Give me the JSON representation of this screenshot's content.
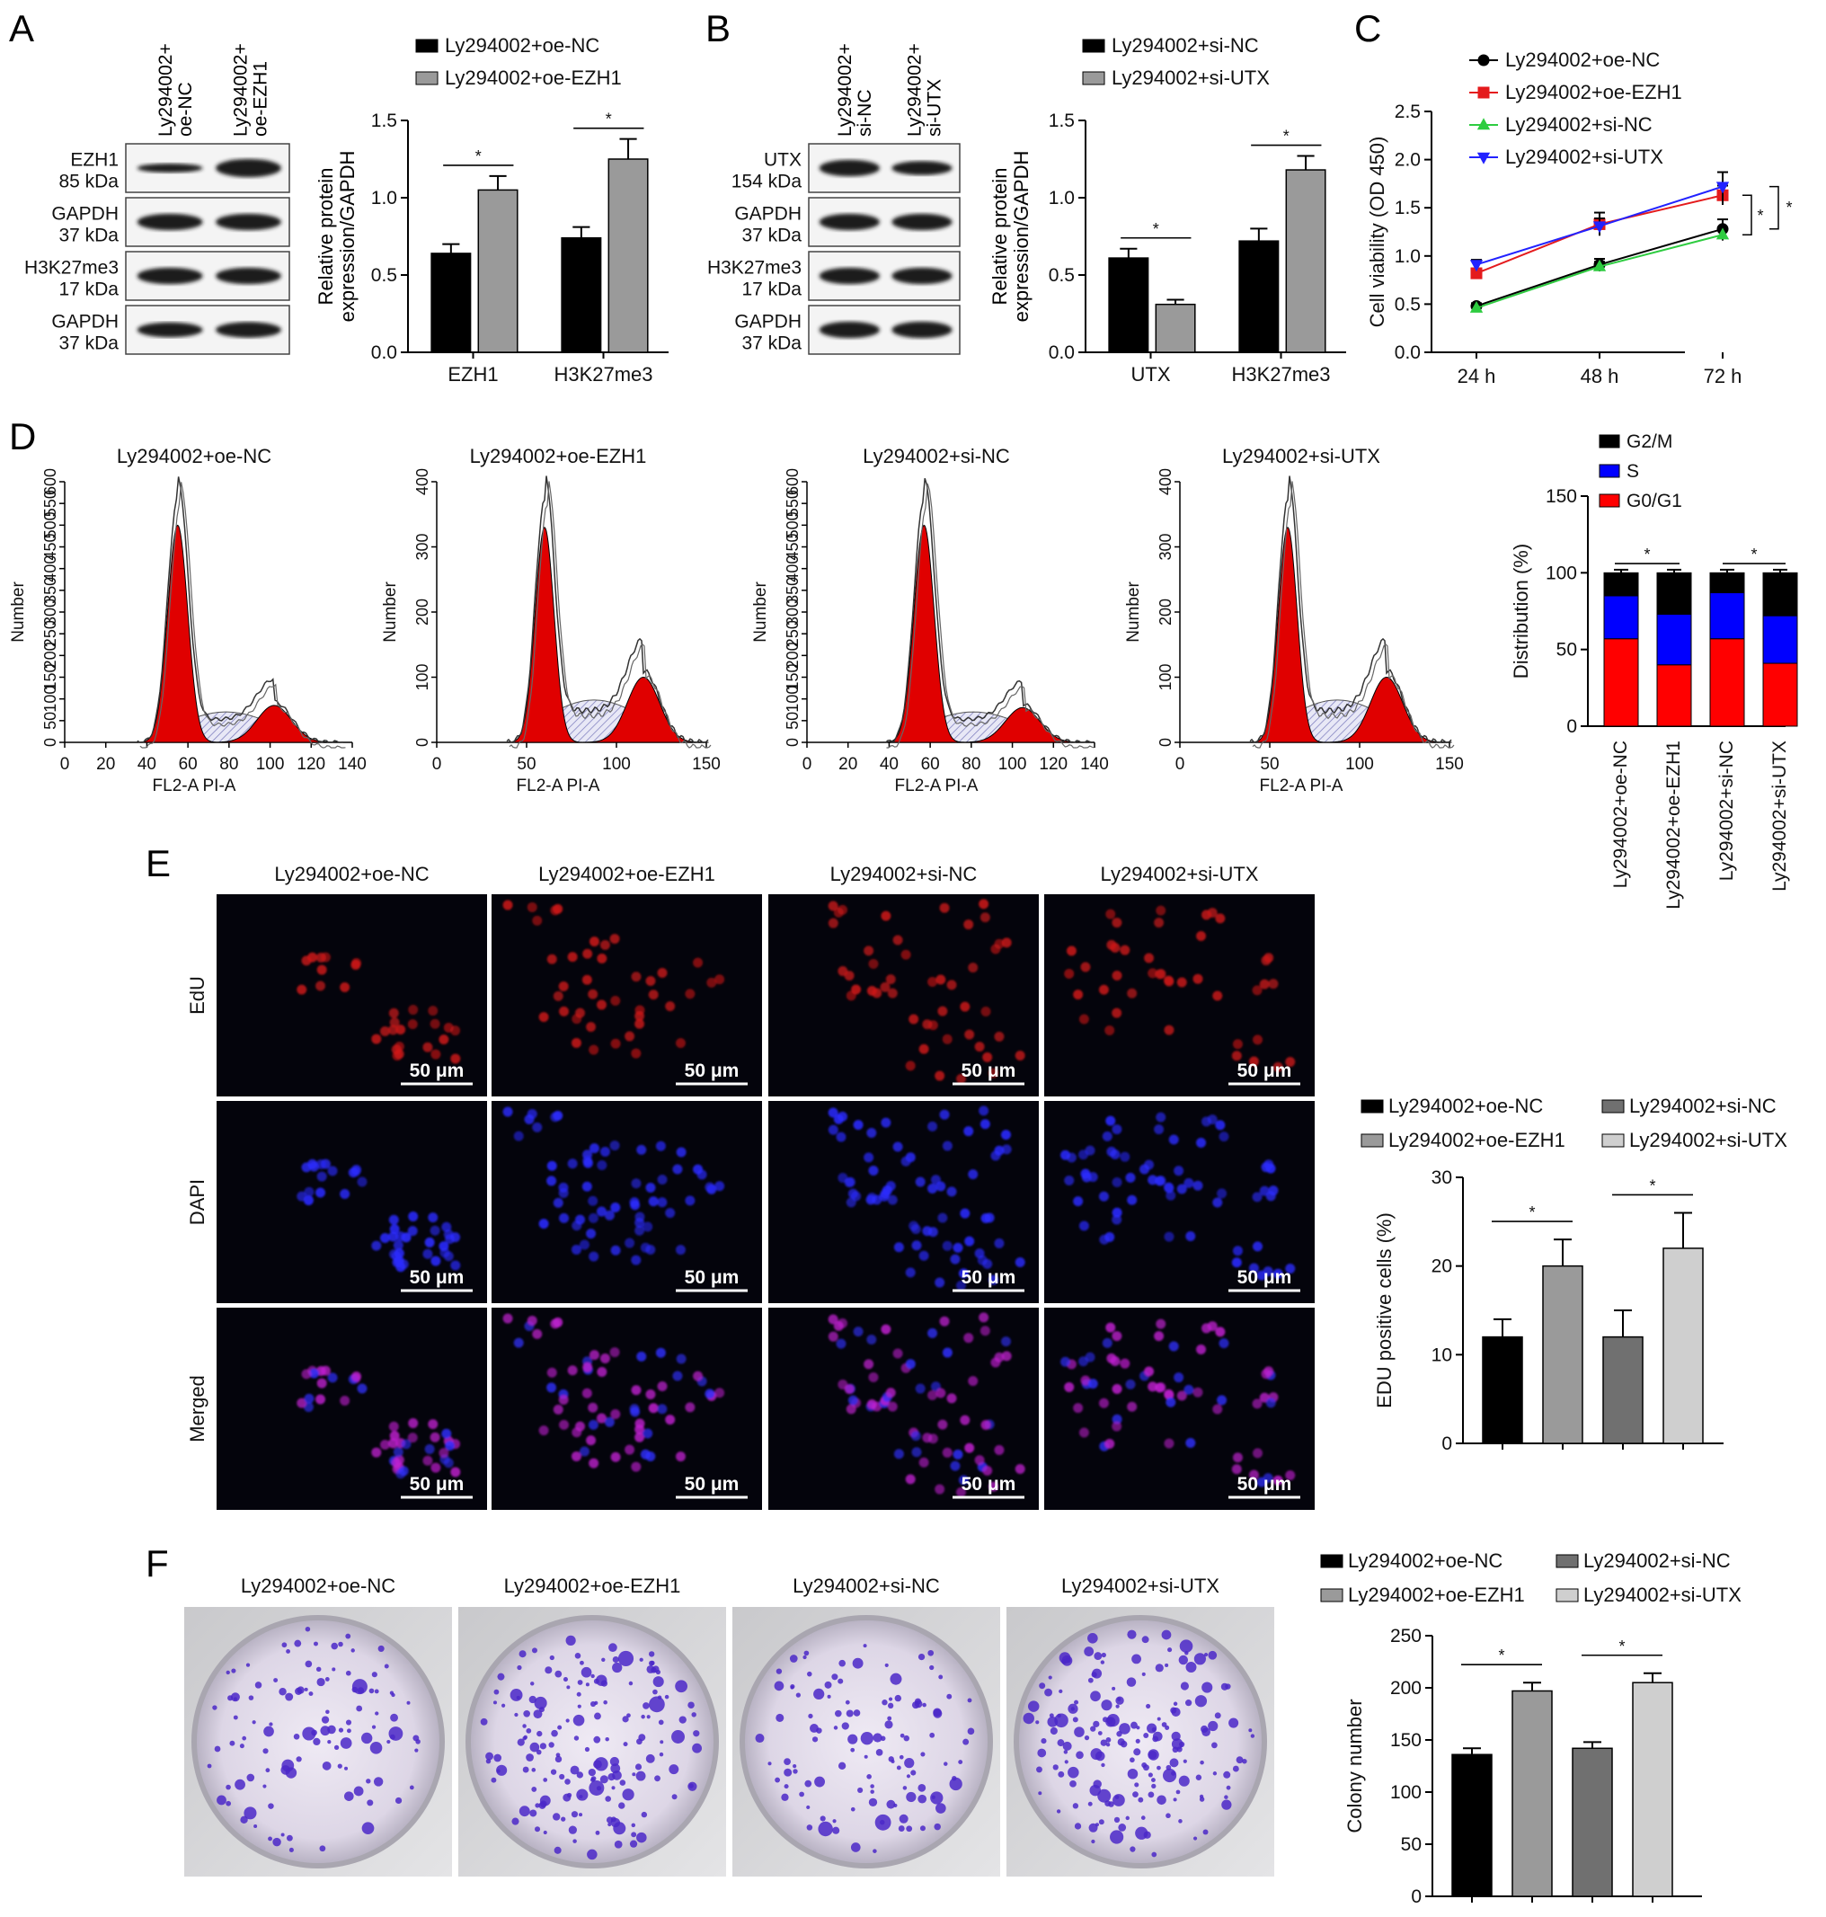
{
  "panels": {
    "A": {
      "letter": "A",
      "blot": {
        "lanes": [
          "Ly294002+\noe-NC",
          "Ly294002+\noe-EZH1"
        ],
        "rows": [
          {
            "name": "EZH1",
            "kda": "85 kDa"
          },
          {
            "name": "GAPDH",
            "kda": "37 kDa"
          },
          {
            "name": "H3K27me3",
            "kda": "17 kDa"
          },
          {
            "name": "GAPDH",
            "kda": "37 kDa"
          }
        ]
      }
    },
    "B": {
      "letter": "B",
      "blot": {
        "lanes": [
          "Ly294002+\nsi-NC",
          "Ly294002+\nsi-UTX"
        ],
        "rows": [
          {
            "name": "UTX",
            "kda": "154 kDa"
          },
          {
            "name": "GAPDH",
            "kda": "37 kDa"
          },
          {
            "name": "H3K27me3",
            "kda": "17 kDa"
          },
          {
            "name": "GAPDH",
            "kda": "37 kDa"
          }
        ]
      }
    },
    "C": {
      "letter": "C"
    },
    "D": {
      "letter": "D",
      "histograms": [
        {
          "title": "Ly294002+oe-NC",
          "xmax": 140,
          "xticks": [
            0,
            20,
            40,
            60,
            80,
            100,
            120,
            140
          ],
          "ymax": 600,
          "yticks": [
            0,
            50,
            100,
            150,
            200,
            250,
            300,
            350,
            400,
            450,
            500,
            550,
            600
          ],
          "g1": 55,
          "g2": 102,
          "g1h": 500,
          "g2h": 85,
          "sh": 70,
          "ylabel": "Number",
          "xlabel": "FL2-A PI-A"
        },
        {
          "title": "Ly294002+oe-EZH1",
          "xmax": 150,
          "xticks": [
            0,
            50,
            100,
            150
          ],
          "ymax": 400,
          "yticks": [
            0,
            100,
            200,
            300,
            400
          ],
          "g1": 60,
          "g2": 115,
          "g1h": 330,
          "g2h": 100,
          "sh": 65,
          "ylabel": "Number",
          "xlabel": "FL2-A PI-A"
        },
        {
          "title": "Ly294002+si-NC",
          "xmax": 140,
          "xticks": [
            0,
            20,
            40,
            60,
            80,
            100,
            120,
            140
          ],
          "ymax": 600,
          "yticks": [
            0,
            50,
            100,
            150,
            200,
            250,
            300,
            350,
            400,
            450,
            500,
            550,
            600
          ],
          "g1": 57,
          "g2": 105,
          "g1h": 500,
          "g2h": 80,
          "sh": 70,
          "ylabel": "Number",
          "xlabel": "FL2-A PI-A"
        },
        {
          "title": "Ly294002+si-UTX",
          "xmax": 150,
          "xticks": [
            0,
            50,
            100,
            150
          ],
          "ymax": 400,
          "yticks": [
            0,
            100,
            200,
            300,
            400
          ],
          "g1": 60,
          "g2": 115,
          "g1h": 330,
          "g2h": 100,
          "sh": 65,
          "ylabel": "Number",
          "xlabel": "FL2-A PI-A"
        }
      ]
    },
    "E": {
      "letter": "E",
      "columns": [
        "Ly294002+oe-NC",
        "Ly294002+oe-EZH1",
        "Ly294002+si-NC",
        "Ly294002+si-UTX"
      ],
      "rows": [
        "EdU",
        "DAPI",
        "Merged"
      ],
      "scale_bar": "50 μm"
    },
    "F": {
      "letter": "F",
      "columns": [
        "Ly294002+oe-NC",
        "Ly294002+oe-EZH1",
        "Ly294002+si-NC",
        "Ly294002+si-UTX"
      ]
    }
  },
  "colors": {
    "black": "#000000",
    "gray": "#9a9a9a",
    "dark_gray": "#707070",
    "light_gray": "#cfcfcf",
    "red": "#e41a1c",
    "blue": "#1010e0",
    "green": "#2ecc40",
    "line_blue": "#2222ff"
  },
  "chart_data": [
    {
      "id": "A-bar",
      "type": "bar",
      "categories": [
        "EZH1",
        "H3K27me3"
      ],
      "series": [
        {
          "name": "Ly294002+oe-NC",
          "values": [
            0.64,
            0.74
          ],
          "errors": [
            0.06,
            0.07
          ]
        },
        {
          "name": "Ly294002+oe-EZH1",
          "values": [
            1.05,
            1.25
          ],
          "errors": [
            0.09,
            0.13
          ]
        }
      ],
      "ylabel": "Relative protein\nexpression/GAPDH",
      "ylim": [
        0,
        1.5
      ],
      "yticks": [
        0.0,
        0.5,
        1.0,
        1.5
      ],
      "legend": "top",
      "significance": [
        "*",
        "*"
      ]
    },
    {
      "id": "B-bar",
      "type": "bar",
      "categories": [
        "UTX",
        "H3K27me3"
      ],
      "series": [
        {
          "name": "Ly294002+si-NC",
          "values": [
            0.61,
            0.72
          ],
          "errors": [
            0.06,
            0.08
          ]
        },
        {
          "name": "Ly294002+si-UTX",
          "values": [
            0.31,
            1.18
          ],
          "errors": [
            0.03,
            0.09
          ]
        }
      ],
      "ylabel": "Relative protein\nexpression/GAPDH",
      "ylim": [
        0,
        1.5
      ],
      "yticks": [
        0.0,
        0.5,
        1.0,
        1.5
      ],
      "legend": "top",
      "significance": [
        "*",
        "*"
      ]
    },
    {
      "id": "C-line",
      "type": "line",
      "x": [
        "24 h",
        "48 h",
        "72 h"
      ],
      "series": [
        {
          "name": "Ly294002+oe-NC",
          "values": [
            0.48,
            0.91,
            1.28
          ],
          "errors": [
            0.03,
            0.06,
            0.1
          ],
          "marker": "circle"
        },
        {
          "name": "Ly294002+oe-EZH1",
          "values": [
            0.82,
            1.33,
            1.63
          ],
          "errors": [
            0.05,
            0.12,
            0.1
          ],
          "marker": "square"
        },
        {
          "name": "Ly294002+si-NC",
          "values": [
            0.46,
            0.89,
            1.22
          ],
          "errors": [
            0.03,
            0.05,
            0.06
          ],
          "marker": "triangle-up"
        },
        {
          "name": "Ly294002+si-UTX",
          "values": [
            0.91,
            1.31,
            1.72
          ],
          "errors": [
            0.05,
            0.08,
            0.15
          ],
          "marker": "triangle-down"
        }
      ],
      "ylabel": "Cell viability (OD 450)",
      "ylim": [
        0,
        2.5
      ],
      "yticks": [
        0.0,
        0.5,
        1.0,
        1.5,
        2.0,
        2.5
      ],
      "legend": "top-left",
      "significance": [
        "*",
        "*"
      ]
    },
    {
      "id": "D-stacked",
      "type": "bar",
      "stacked": true,
      "categories": [
        "Ly294002+oe-NC",
        "Ly294002+oe-EZH1",
        "Ly294002+si-NC",
        "Ly294002+si-UTX"
      ],
      "series": [
        {
          "name": "G0/G1",
          "values": [
            57,
            40,
            57,
            41
          ]
        },
        {
          "name": "S",
          "values": [
            28,
            33,
            30,
            31
          ]
        },
        {
          "name": "G2/M",
          "values": [
            15,
            27,
            13,
            28
          ]
        }
      ],
      "legend_order": [
        "G2/M",
        "S",
        "G0/G1"
      ],
      "ylabel": "Distribution (%)",
      "ylim": [
        0,
        150
      ],
      "yticks": [
        0,
        50,
        100,
        150
      ],
      "significance": [
        "*",
        "*"
      ]
    },
    {
      "id": "E-bar",
      "type": "bar",
      "categories": [
        "Ly294002+oe-NC",
        "Ly294002+oe-EZH1",
        "Ly294002+si-NC",
        "Ly294002+si-UTX"
      ],
      "values": [
        12,
        20,
        12,
        22
      ],
      "errors": [
        2,
        3,
        3,
        4
      ],
      "legend": [
        "Ly294002+oe-NC",
        "Ly294002+si-NC",
        "Ly294002+oe-EZH1",
        "Ly294002+si-UTX"
      ],
      "ylabel": "EDU positive cells (%)",
      "ylim": [
        0,
        30
      ],
      "yticks": [
        0,
        10,
        20,
        30
      ],
      "significance": [
        "*",
        "*"
      ]
    },
    {
      "id": "F-bar",
      "type": "bar",
      "categories": [
        "Ly294002+oe-NC",
        "Ly294002+oe-EZH1",
        "Ly294002+si-NC",
        "Ly294002+si-UTX"
      ],
      "values": [
        136,
        197,
        142,
        205
      ],
      "errors": [
        6,
        8,
        6,
        9
      ],
      "legend": [
        "Ly294002+oe-NC",
        "Ly294002+si-NC",
        "Ly294002+oe-EZH1",
        "Ly294002+si-UTX"
      ],
      "ylabel": "Colony number",
      "ylim": [
        0,
        250
      ],
      "yticks": [
        0,
        50,
        100,
        150,
        200,
        250
      ],
      "significance": [
        "*",
        "*"
      ]
    }
  ]
}
